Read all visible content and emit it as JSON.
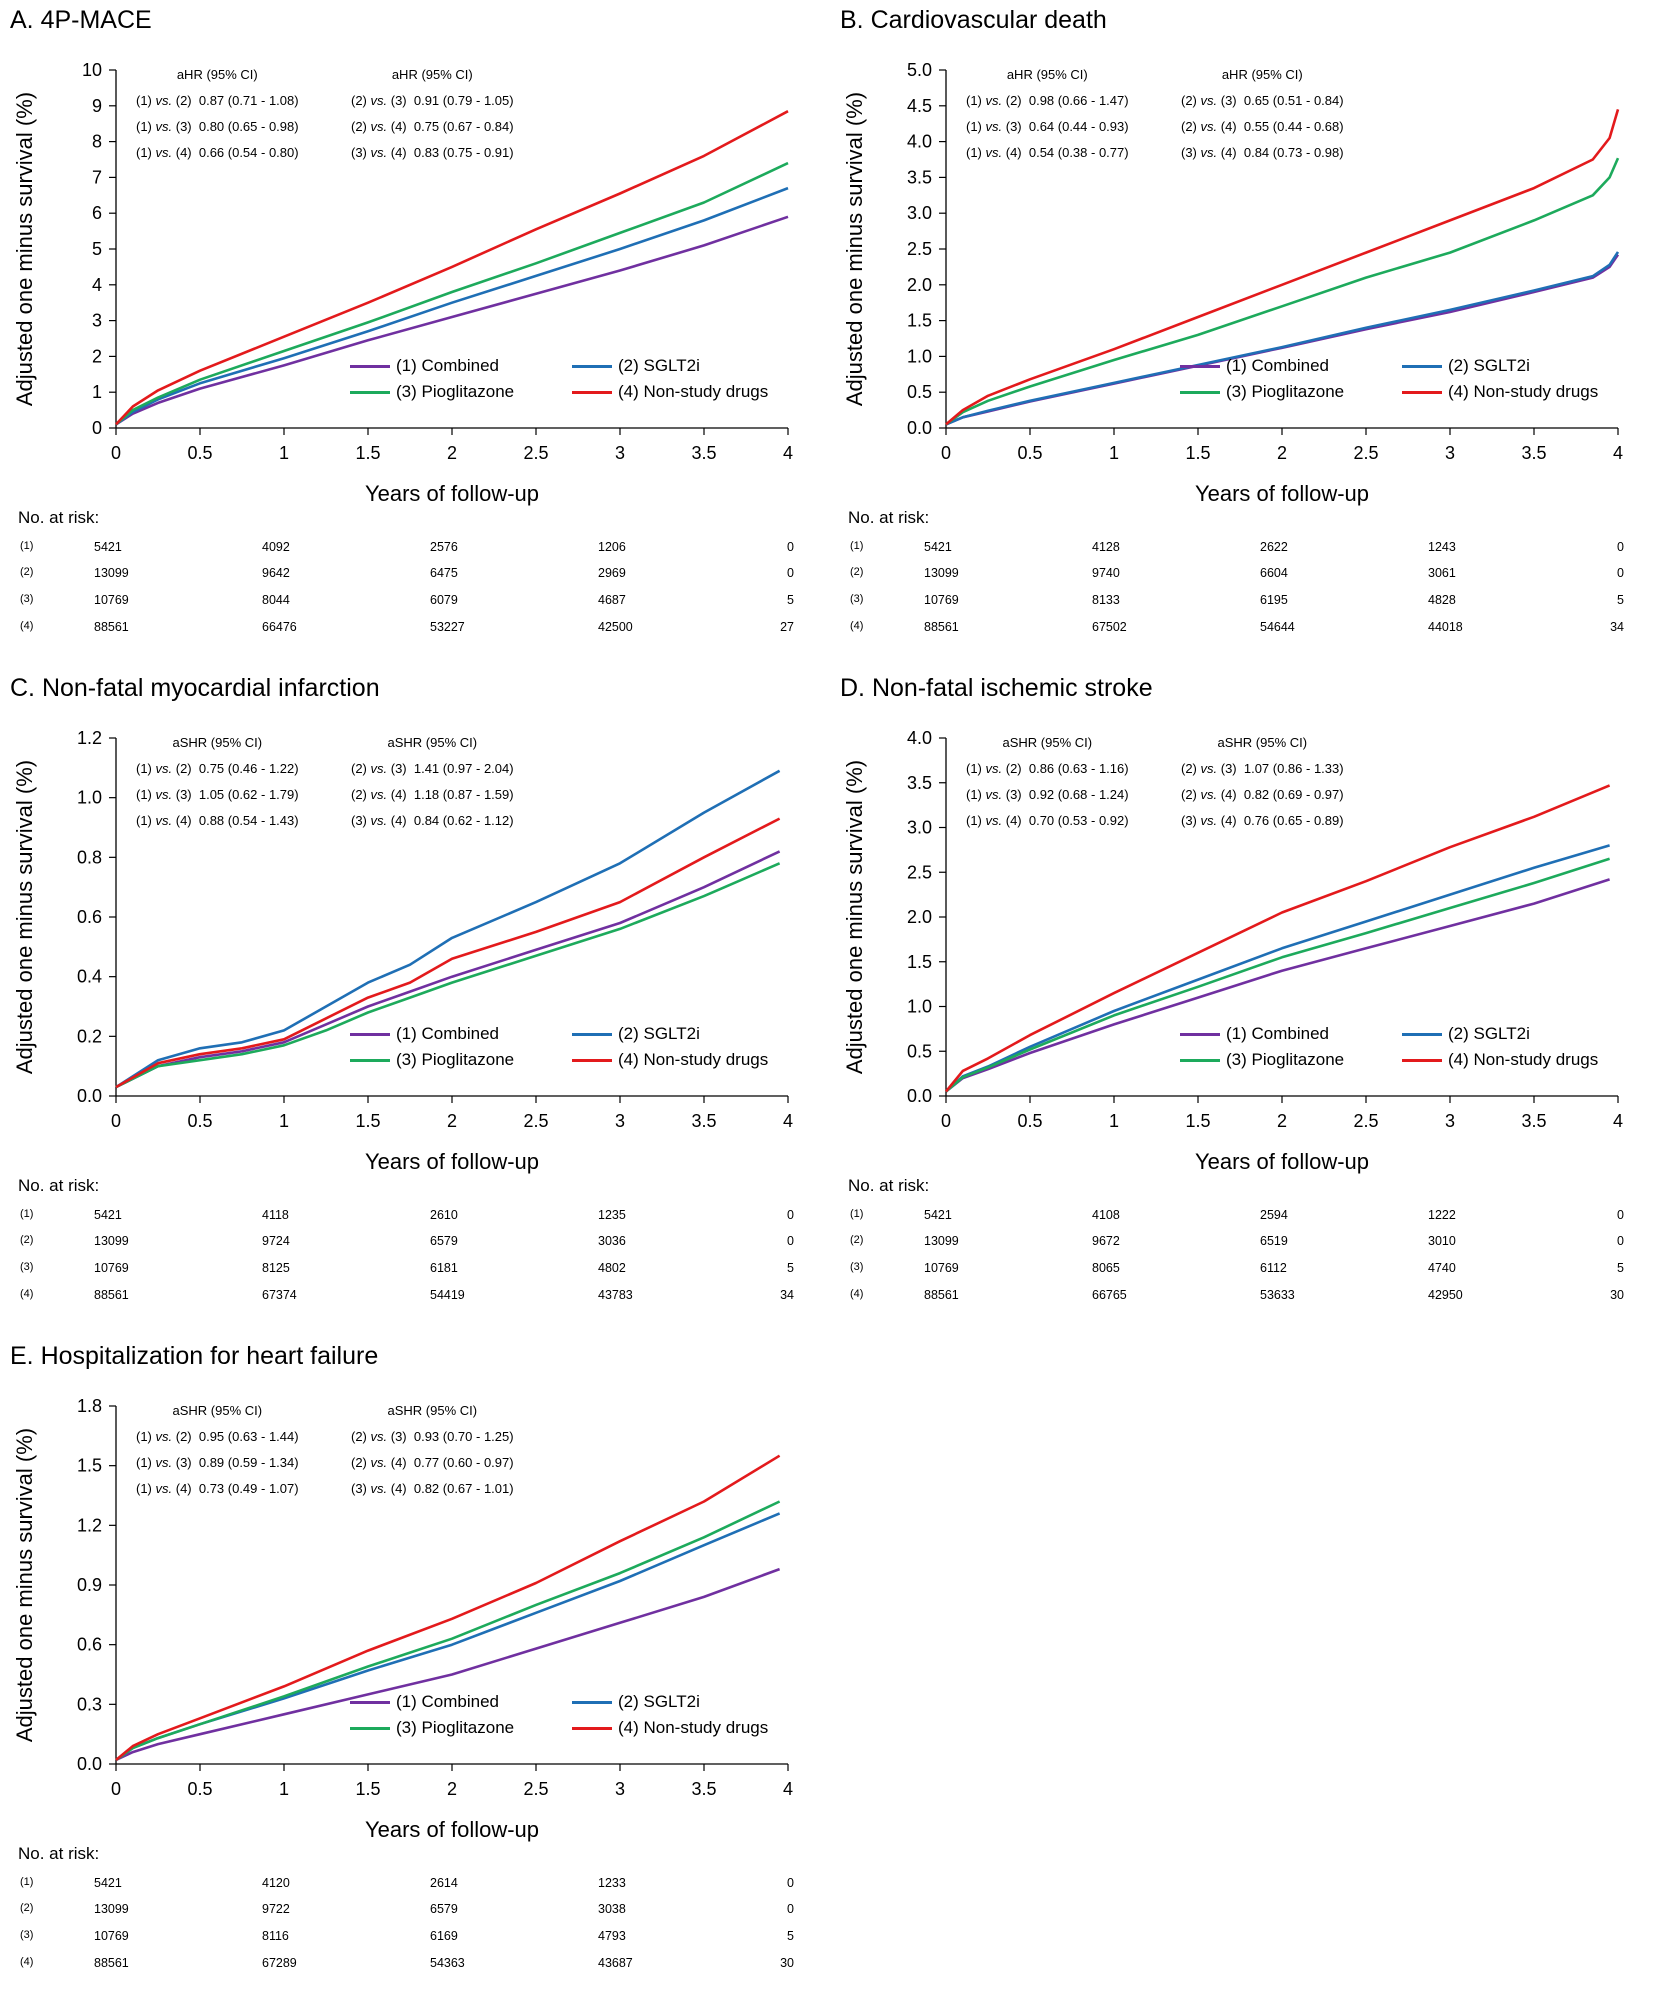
{
  "figure": {
    "y_axis_label": "Adjusted one minus survival (%)",
    "x_axis_label": "Years of follow-up",
    "at_risk_title": "No. at risk:",
    "group_labels": [
      "(1)",
      "(2)",
      "(3)",
      "(4)"
    ],
    "colors": {
      "combined": "#7030A0",
      "sglt2i": "#1F6FB5",
      "pioglitazone": "#1DAA5C",
      "nonstudy": "#E31A1C"
    },
    "legend": [
      "(1) Combined",
      "(2) SGLT2i",
      "(3) Pioglitazone",
      "(4) Non-study drugs"
    ],
    "vs_word": "vs."
  },
  "chart_data": [
    {
      "type": "line",
      "title": "A. 4P-MACE",
      "xlabel": "Years of follow-up",
      "ylabel": "Adjusted one minus survival (%)",
      "xlim": [
        0,
        4
      ],
      "ylim": [
        0,
        10
      ],
      "xticks": [
        "0",
        "0.5",
        "1",
        "1.5",
        "2",
        "2.5",
        "3",
        "3.5",
        "4"
      ],
      "yticks": [
        "0",
        "1",
        "2",
        "3",
        "4",
        "5",
        "6",
        "7",
        "8",
        "9",
        "10"
      ],
      "stat_header": "aHR (95% CI)",
      "comparisons_left": [
        [
          "(1)",
          "(2)",
          "0.87 (0.71 - 1.08)"
        ],
        [
          "(1)",
          "(3)",
          "0.80 (0.65 - 0.98)"
        ],
        [
          "(1)",
          "(4)",
          "0.66 (0.54 - 0.80)"
        ]
      ],
      "comparisons_right": [
        [
          "(2)",
          "(3)",
          "0.91 (0.79 - 1.05)"
        ],
        [
          "(2)",
          "(4)",
          "0.75 (0.67 - 0.84)"
        ],
        [
          "(3)",
          "(4)",
          "0.83 (0.75 - 0.91)"
        ]
      ],
      "series": [
        {
          "name": "(1) Combined",
          "color": "#7030A0",
          "x": [
            0,
            0.1,
            0.25,
            0.5,
            1,
            1.5,
            2,
            2.5,
            3,
            3.5,
            4
          ],
          "y": [
            0.1,
            0.4,
            0.7,
            1.1,
            1.75,
            2.45,
            3.1,
            3.75,
            4.4,
            5.1,
            5.9
          ]
        },
        {
          "name": "(2) SGLT2i",
          "color": "#1F6FB5",
          "x": [
            0,
            0.1,
            0.25,
            0.5,
            1,
            1.5,
            2,
            2.5,
            3,
            3.5,
            4
          ],
          "y": [
            0.1,
            0.45,
            0.8,
            1.25,
            1.95,
            2.7,
            3.5,
            4.25,
            5.0,
            5.8,
            6.7
          ]
        },
        {
          "name": "(3) Pioglitazone",
          "color": "#1DAA5C",
          "x": [
            0,
            0.1,
            0.25,
            0.5,
            1,
            1.5,
            2,
            2.5,
            3,
            3.5,
            4
          ],
          "y": [
            0.1,
            0.5,
            0.85,
            1.35,
            2.15,
            2.95,
            3.8,
            4.6,
            5.45,
            6.3,
            7.4
          ]
        },
        {
          "name": "(4) Non-study drugs",
          "color": "#E31A1C",
          "x": [
            0,
            0.1,
            0.25,
            0.5,
            1,
            1.5,
            2,
            2.5,
            3,
            3.5,
            4
          ],
          "y": [
            0.1,
            0.6,
            1.05,
            1.6,
            2.55,
            3.5,
            4.5,
            5.55,
            6.55,
            7.6,
            8.85
          ]
        }
      ],
      "at_risk": [
        [
          "5421",
          "4092",
          "2576",
          "1206",
          "0"
        ],
        [
          "13099",
          "9642",
          "6475",
          "2969",
          "0"
        ],
        [
          "10769",
          "8044",
          "6079",
          "4687",
          "5"
        ],
        [
          "88561",
          "66476",
          "53227",
          "42500",
          "27"
        ]
      ]
    },
    {
      "type": "line",
      "title": "B. Cardiovascular death",
      "xlabel": "Years of follow-up",
      "ylabel": "Adjusted one minus survival (%)",
      "xlim": [
        0,
        4
      ],
      "ylim": [
        0,
        5
      ],
      "xticks": [
        "0",
        "0.5",
        "1",
        "1.5",
        "2",
        "2.5",
        "3",
        "3.5",
        "4"
      ],
      "yticks": [
        "0.0",
        "0.5",
        "1.0",
        "1.5",
        "2.0",
        "2.5",
        "3.0",
        "3.5",
        "4.0",
        "4.5",
        "5.0"
      ],
      "stat_header": "aHR (95% CI)",
      "comparisons_left": [
        [
          "(1)",
          "(2)",
          "0.98 (0.66 - 1.47)"
        ],
        [
          "(1)",
          "(3)",
          "0.64 (0.44 - 0.93)"
        ],
        [
          "(1)",
          "(4)",
          "0.54 (0.38 - 0.77)"
        ]
      ],
      "comparisons_right": [
        [
          "(2)",
          "(3)",
          "0.65 (0.51 - 0.84)"
        ],
        [
          "(2)",
          "(4)",
          "0.55 (0.44 - 0.68)"
        ],
        [
          "(3)",
          "(4)",
          "0.84 (0.73 - 0.98)"
        ]
      ],
      "series": [
        {
          "name": "(1) Combined",
          "color": "#7030A0",
          "x": [
            0,
            0.1,
            0.25,
            0.5,
            1,
            1.5,
            2,
            2.5,
            3,
            3.5,
            3.85,
            3.95,
            4
          ],
          "y": [
            0.05,
            0.15,
            0.23,
            0.37,
            0.62,
            0.87,
            1.12,
            1.38,
            1.62,
            1.9,
            2.1,
            2.25,
            2.42
          ]
        },
        {
          "name": "(2) SGLT2i",
          "color": "#1F6FB5",
          "x": [
            0,
            0.1,
            0.25,
            0.5,
            1,
            1.5,
            2,
            2.5,
            3,
            3.5,
            3.85,
            3.95,
            4
          ],
          "y": [
            0.05,
            0.15,
            0.24,
            0.38,
            0.63,
            0.88,
            1.13,
            1.4,
            1.65,
            1.92,
            2.12,
            2.28,
            2.46
          ]
        },
        {
          "name": "(3) Pioglitazone",
          "color": "#1DAA5C",
          "x": [
            0,
            0.1,
            0.25,
            0.5,
            1,
            1.5,
            2,
            2.5,
            3,
            3.5,
            3.85,
            3.95,
            4
          ],
          "y": [
            0.05,
            0.22,
            0.38,
            0.58,
            0.95,
            1.3,
            1.7,
            2.1,
            2.45,
            2.9,
            3.25,
            3.5,
            3.77
          ]
        },
        {
          "name": "(4) Non-study drugs",
          "color": "#E31A1C",
          "x": [
            0,
            0.1,
            0.25,
            0.5,
            1,
            1.5,
            2,
            2.5,
            3,
            3.5,
            3.85,
            3.95,
            4
          ],
          "y": [
            0.05,
            0.25,
            0.45,
            0.68,
            1.1,
            1.55,
            2.0,
            2.45,
            2.9,
            3.35,
            3.75,
            4.05,
            4.45
          ]
        }
      ],
      "at_risk": [
        [
          "5421",
          "4128",
          "2622",
          "1243",
          "0"
        ],
        [
          "13099",
          "9740",
          "6604",
          "3061",
          "0"
        ],
        [
          "10769",
          "8133",
          "6195",
          "4828",
          "5"
        ],
        [
          "88561",
          "67502",
          "54644",
          "44018",
          "34"
        ]
      ]
    },
    {
      "type": "line",
      "title": "C. Non-fatal myocardial infarction",
      "xlabel": "Years of follow-up",
      "ylabel": "Adjusted one minus survival (%)",
      "xlim": [
        0,
        4
      ],
      "ylim": [
        0,
        1.2
      ],
      "xticks": [
        "0",
        "0.5",
        "1",
        "1.5",
        "2",
        "2.5",
        "3",
        "3.5",
        "4"
      ],
      "yticks": [
        "0.0",
        "0.2",
        "0.4",
        "0.6",
        "0.8",
        "1.0",
        "1.2"
      ],
      "stat_header": "aSHR (95% CI)",
      "comparisons_left": [
        [
          "(1)",
          "(2)",
          "0.75 (0.46 - 1.22)"
        ],
        [
          "(1)",
          "(3)",
          "1.05 (0.62 - 1.79)"
        ],
        [
          "(1)",
          "(4)",
          "0.88 (0.54 - 1.43)"
        ]
      ],
      "comparisons_right": [
        [
          "(2)",
          "(3)",
          "1.41 (0.97 - 2.04)"
        ],
        [
          "(2)",
          "(4)",
          "1.18 (0.87 - 1.59)"
        ],
        [
          "(3)",
          "(4)",
          "0.84 (0.62 - 1.12)"
        ]
      ],
      "series": [
        {
          "name": "(1) Combined",
          "color": "#7030A0",
          "x": [
            0,
            0.25,
            0.5,
            0.75,
            1,
            1.25,
            1.5,
            1.75,
            2,
            2.5,
            3,
            3.5,
            3.95
          ],
          "y": [
            0.03,
            0.1,
            0.13,
            0.15,
            0.18,
            0.24,
            0.3,
            0.35,
            0.4,
            0.49,
            0.58,
            0.7,
            0.82
          ]
        },
        {
          "name": "(2) SGLT2i",
          "color": "#1F6FB5",
          "x": [
            0,
            0.25,
            0.5,
            0.75,
            1,
            1.25,
            1.5,
            1.75,
            2,
            2.5,
            3,
            3.5,
            3.95
          ],
          "y": [
            0.03,
            0.12,
            0.16,
            0.18,
            0.22,
            0.3,
            0.38,
            0.44,
            0.53,
            0.65,
            0.78,
            0.95,
            1.09
          ]
        },
        {
          "name": "(3) Pioglitazone",
          "color": "#1DAA5C",
          "x": [
            0,
            0.25,
            0.5,
            0.75,
            1,
            1.25,
            1.5,
            1.75,
            2,
            2.5,
            3,
            3.5,
            3.95
          ],
          "y": [
            0.03,
            0.1,
            0.12,
            0.14,
            0.17,
            0.22,
            0.28,
            0.33,
            0.38,
            0.47,
            0.56,
            0.67,
            0.78
          ]
        },
        {
          "name": "(4) Non-study drugs",
          "color": "#E31A1C",
          "x": [
            0,
            0.25,
            0.5,
            0.75,
            1,
            1.25,
            1.5,
            1.75,
            2,
            2.5,
            3,
            3.5,
            3.95
          ],
          "y": [
            0.03,
            0.11,
            0.14,
            0.16,
            0.19,
            0.26,
            0.33,
            0.38,
            0.46,
            0.55,
            0.65,
            0.8,
            0.93
          ]
        }
      ],
      "at_risk": [
        [
          "5421",
          "4118",
          "2610",
          "1235",
          "0"
        ],
        [
          "13099",
          "9724",
          "6579",
          "3036",
          "0"
        ],
        [
          "10769",
          "8125",
          "6181",
          "4802",
          "5"
        ],
        [
          "88561",
          "67374",
          "54419",
          "43783",
          "34"
        ]
      ]
    },
    {
      "type": "line",
      "title": "D. Non-fatal ischemic stroke",
      "xlabel": "Years of follow-up",
      "ylabel": "Adjusted one minus survival (%)",
      "xlim": [
        0,
        4
      ],
      "ylim": [
        0,
        4
      ],
      "xticks": [
        "0",
        "0.5",
        "1",
        "1.5",
        "2",
        "2.5",
        "3",
        "3.5",
        "4"
      ],
      "yticks": [
        "0.0",
        "0.5",
        "1.0",
        "1.5",
        "2.0",
        "2.5",
        "3.0",
        "3.5",
        "4.0"
      ],
      "stat_header": "aSHR (95% CI)",
      "comparisons_left": [
        [
          "(1)",
          "(2)",
          "0.86 (0.63 - 1.16)"
        ],
        [
          "(1)",
          "(3)",
          "0.92 (0.68 - 1.24)"
        ],
        [
          "(1)",
          "(4)",
          "0.70 (0.53 - 0.92)"
        ]
      ],
      "comparisons_right": [
        [
          "(2)",
          "(3)",
          "1.07 (0.86 - 1.33)"
        ],
        [
          "(2)",
          "(4)",
          "0.82 (0.69 - 0.97)"
        ],
        [
          "(3)",
          "(4)",
          "0.76 (0.65 - 0.89)"
        ]
      ],
      "series": [
        {
          "name": "(1) Combined",
          "color": "#7030A0",
          "x": [
            0,
            0.1,
            0.25,
            0.5,
            1,
            1.5,
            2,
            2.5,
            3,
            3.5,
            3.95
          ],
          "y": [
            0.05,
            0.2,
            0.3,
            0.48,
            0.8,
            1.1,
            1.4,
            1.65,
            1.9,
            2.15,
            2.42
          ]
        },
        {
          "name": "(2) SGLT2i",
          "color": "#1F6FB5",
          "x": [
            0,
            0.1,
            0.25,
            0.5,
            1,
            1.5,
            2,
            2.5,
            3,
            3.5,
            3.95
          ],
          "y": [
            0.05,
            0.22,
            0.33,
            0.55,
            0.95,
            1.3,
            1.65,
            1.95,
            2.25,
            2.55,
            2.8
          ]
        },
        {
          "name": "(3) Pioglitazone",
          "color": "#1DAA5C",
          "x": [
            0,
            0.1,
            0.25,
            0.5,
            1,
            1.5,
            2,
            2.5,
            3,
            3.5,
            3.95
          ],
          "y": [
            0.05,
            0.21,
            0.32,
            0.52,
            0.9,
            1.22,
            1.55,
            1.82,
            2.1,
            2.38,
            2.65
          ]
        },
        {
          "name": "(4) Non-study drugs",
          "color": "#E31A1C",
          "x": [
            0,
            0.1,
            0.25,
            0.5,
            1,
            1.5,
            2,
            2.5,
            3,
            3.5,
            3.95
          ],
          "y": [
            0.05,
            0.28,
            0.42,
            0.68,
            1.15,
            1.6,
            2.05,
            2.4,
            2.78,
            3.12,
            3.47
          ]
        }
      ],
      "at_risk": [
        [
          "5421",
          "4108",
          "2594",
          "1222",
          "0"
        ],
        [
          "13099",
          "9672",
          "6519",
          "3010",
          "0"
        ],
        [
          "10769",
          "8065",
          "6112",
          "4740",
          "5"
        ],
        [
          "88561",
          "66765",
          "53633",
          "42950",
          "30"
        ]
      ]
    },
    {
      "type": "line",
      "title": "E. Hospitalization for heart failure",
      "xlabel": "Years of follow-up",
      "ylabel": "Adjusted one minus survival (%)",
      "xlim": [
        0,
        4
      ],
      "ylim": [
        0,
        1.8
      ],
      "xticks": [
        "0",
        "0.5",
        "1",
        "1.5",
        "2",
        "2.5",
        "3",
        "3.5",
        "4"
      ],
      "yticks": [
        "0.0",
        "0.3",
        "0.6",
        "0.9",
        "1.2",
        "1.5",
        "1.8"
      ],
      "stat_header": "aSHR (95% CI)",
      "comparisons_left": [
        [
          "(1)",
          "(2)",
          "0.95 (0.63 - 1.44)"
        ],
        [
          "(1)",
          "(3)",
          "0.89 (0.59 - 1.34)"
        ],
        [
          "(1)",
          "(4)",
          "0.73 (0.49 - 1.07)"
        ]
      ],
      "comparisons_right": [
        [
          "(2)",
          "(3)",
          "0.93 (0.70 - 1.25)"
        ],
        [
          "(2)",
          "(4)",
          "0.77 (0.60 - 0.97)"
        ],
        [
          "(3)",
          "(4)",
          "0.82 (0.67 - 1.01)"
        ]
      ],
      "series": [
        {
          "name": "(1) Combined",
          "color": "#7030A0",
          "x": [
            0,
            0.1,
            0.25,
            0.5,
            1,
            1.5,
            2,
            2.5,
            3,
            3.5,
            3.95
          ],
          "y": [
            0.02,
            0.06,
            0.1,
            0.15,
            0.25,
            0.35,
            0.45,
            0.58,
            0.71,
            0.84,
            0.98
          ]
        },
        {
          "name": "(2) SGLT2i",
          "color": "#1F6FB5",
          "x": [
            0,
            0.1,
            0.25,
            0.5,
            1,
            1.5,
            2,
            2.5,
            3,
            3.5,
            3.95
          ],
          "y": [
            0.02,
            0.08,
            0.13,
            0.2,
            0.33,
            0.47,
            0.6,
            0.76,
            0.92,
            1.1,
            1.26
          ]
        },
        {
          "name": "(3) Pioglitazone",
          "color": "#1DAA5C",
          "x": [
            0,
            0.1,
            0.25,
            0.5,
            1,
            1.5,
            2,
            2.5,
            3,
            3.5,
            3.95
          ],
          "y": [
            0.02,
            0.08,
            0.13,
            0.2,
            0.34,
            0.49,
            0.63,
            0.8,
            0.96,
            1.14,
            1.32
          ]
        },
        {
          "name": "(4) Non-study drugs",
          "color": "#E31A1C",
          "x": [
            0,
            0.1,
            0.25,
            0.5,
            1,
            1.5,
            2,
            2.5,
            3,
            3.5,
            3.95
          ],
          "y": [
            0.02,
            0.09,
            0.15,
            0.23,
            0.39,
            0.57,
            0.73,
            0.91,
            1.12,
            1.32,
            1.55
          ]
        }
      ],
      "at_risk": [
        [
          "5421",
          "4120",
          "2614",
          "1233",
          "0"
        ],
        [
          "13099",
          "9722",
          "6579",
          "3038",
          "0"
        ],
        [
          "10769",
          "8116",
          "6169",
          "4793",
          "5"
        ],
        [
          "88561",
          "67289",
          "54363",
          "43687",
          "30"
        ]
      ]
    }
  ]
}
